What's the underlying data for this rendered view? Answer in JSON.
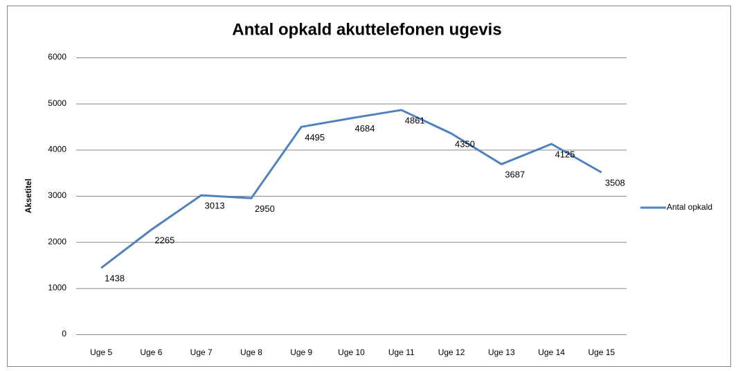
{
  "chart_data": {
    "type": "line",
    "title": "Antal opkald akuttelefonen ugevis",
    "y_label": "Aksetitel",
    "categories": [
      "Uge 5",
      "Uge 6",
      "Uge 7",
      "Uge 8",
      "Uge 9",
      "Uge 10",
      "Uge 11",
      "Uge 12",
      "Uge 13",
      "Uge 14",
      "Uge 15"
    ],
    "series": [
      {
        "name": "Antal opkald",
        "color": "#4f81bd",
        "values": [
          1438,
          2265,
          3013,
          2950,
          4495,
          4684,
          4861,
          4350,
          3687,
          4125,
          3508
        ]
      }
    ],
    "ylim": [
      0,
      6000
    ],
    "yticks": [
      0,
      1000,
      2000,
      3000,
      4000,
      5000,
      6000
    ],
    "grid": true,
    "legend": "right"
  }
}
